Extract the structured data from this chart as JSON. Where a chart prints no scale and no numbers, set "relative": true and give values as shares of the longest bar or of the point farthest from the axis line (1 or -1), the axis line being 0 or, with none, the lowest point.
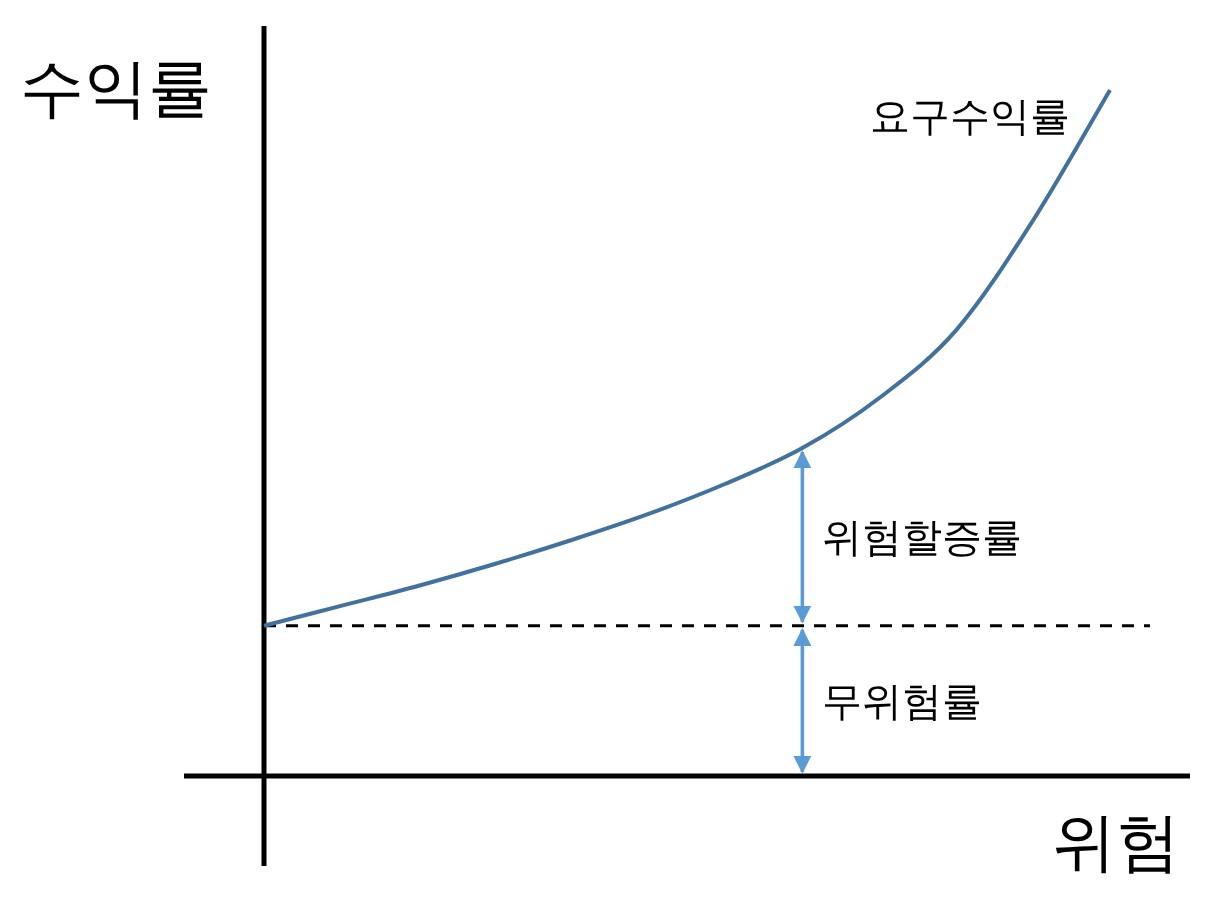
{
  "chart_data": {
    "type": "line",
    "relative": true,
    "xlabel": "위험",
    "ylabel": "수익률",
    "marker": "none",
    "categories": [
      null,
      null,
      null,
      null,
      null,
      null,
      null,
      null,
      null,
      null,
      null,
      null
    ],
    "series": [
      {
        "name": "요구수익률",
        "color": "#41719c",
        "values": [
          0.219,
          0.248,
          0.277,
          0.309,
          0.344,
          0.382,
          0.426,
          0.478,
          0.551,
          0.65,
          0.81,
          1
        ]
      }
    ],
    "ref_lines": [
      {
        "axis": "y",
        "value": 0.219,
        "line_style": "dashed",
        "color": "#000000"
      }
    ],
    "annotations": [
      "위험할증률",
      "무위험률"
    ]
  }
}
